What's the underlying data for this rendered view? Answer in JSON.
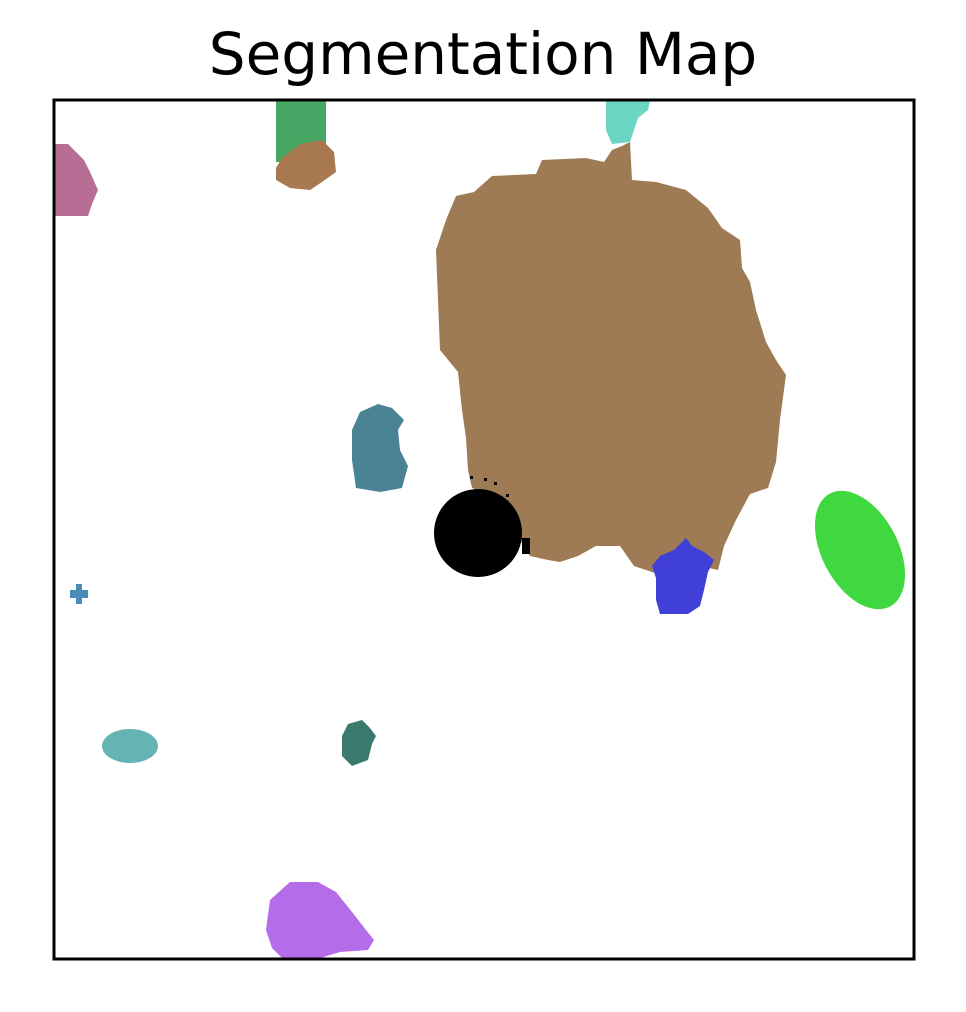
{
  "title": "Segmentation Map",
  "background_color": "#ffffff",
  "frame_color": "#000000",
  "segments": [
    {
      "name": "segment-large-brown",
      "color": "#9e7b55"
    },
    {
      "name": "segment-black-round",
      "color": "#000000"
    },
    {
      "name": "segment-blue",
      "color": "#4040d8"
    },
    {
      "name": "segment-bright-green",
      "color": "#40d840"
    },
    {
      "name": "segment-steel-blue",
      "color": "#4a8494"
    },
    {
      "name": "segment-teal-top",
      "color": "#6cd6c4"
    },
    {
      "name": "segment-green-top",
      "color": "#47a866"
    },
    {
      "name": "segment-small-brown-top",
      "color": "#a87850"
    },
    {
      "name": "segment-pink-edge",
      "color": "#b86e94"
    },
    {
      "name": "segment-tiny-blue-dot",
      "color": "#4a8cb8"
    },
    {
      "name": "segment-light-teal",
      "color": "#64b4b4"
    },
    {
      "name": "segment-dark-teal",
      "color": "#3a7a6c"
    },
    {
      "name": "segment-purple-bottom",
      "color": "#b46ce8"
    }
  ]
}
